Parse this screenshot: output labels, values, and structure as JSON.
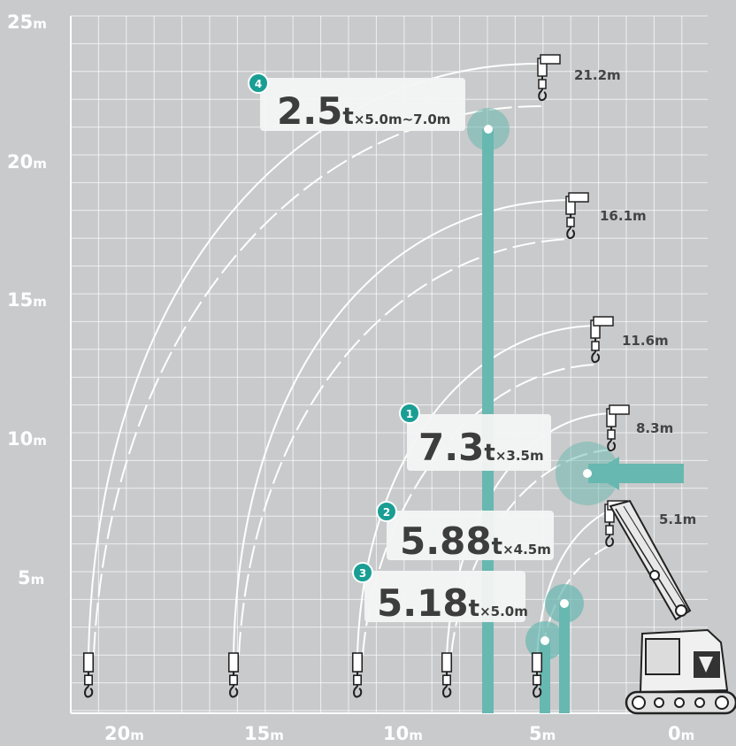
{
  "colors": {
    "background": "#c9cacb",
    "grid": "#ffffff",
    "accent": "#67b8b0",
    "label_box": "#f4f4f4",
    "text_dark": "#3d3d3d",
    "badge": "#1a9e94"
  },
  "axes": {
    "y_ticks": [
      {
        "value": 25,
        "num": "25",
        "unit": "m"
      },
      {
        "value": 20,
        "num": "20",
        "unit": "m"
      },
      {
        "value": 15,
        "num": "15",
        "unit": "m"
      },
      {
        "value": 10,
        "num": "10",
        "unit": "m"
      },
      {
        "value": 5,
        "num": "5",
        "unit": "m"
      }
    ],
    "x_ticks": [
      {
        "value": 20,
        "num": "20",
        "unit": "m"
      },
      {
        "value": 15,
        "num": "15",
        "unit": "m"
      },
      {
        "value": 10,
        "num": "10",
        "unit": "m"
      },
      {
        "value": 5,
        "num": "5",
        "unit": "m"
      },
      {
        "value": 0,
        "num": "0",
        "unit": "m"
      }
    ]
  },
  "boom_lengths": [
    {
      "label": "21.2m",
      "tip_height": 23.4,
      "reach": 21.2
    },
    {
      "label": "16.1m",
      "tip_height": 18.4,
      "reach": 16.1
    },
    {
      "label": "11.6m",
      "tip_height": 13.9,
      "reach": 11.6
    },
    {
      "label": "8.3m",
      "tip_height": 10.7,
      "reach": 8.3
    },
    {
      "label": "5.1m",
      "tip_height": 7.5,
      "reach": 5.1
    }
  ],
  "capacities": [
    {
      "badge": "1",
      "load": "7.3",
      "unit": "t",
      "radius": "×3.5m"
    },
    {
      "badge": "2",
      "load": "5.88",
      "unit": "t",
      "radius": "×4.5m"
    },
    {
      "badge": "3",
      "load": "5.18",
      "unit": "t",
      "radius": "×5.0m"
    },
    {
      "badge": "4",
      "load": "2.5",
      "unit": "t",
      "radius": "×5.0m~7.0m"
    }
  ]
}
